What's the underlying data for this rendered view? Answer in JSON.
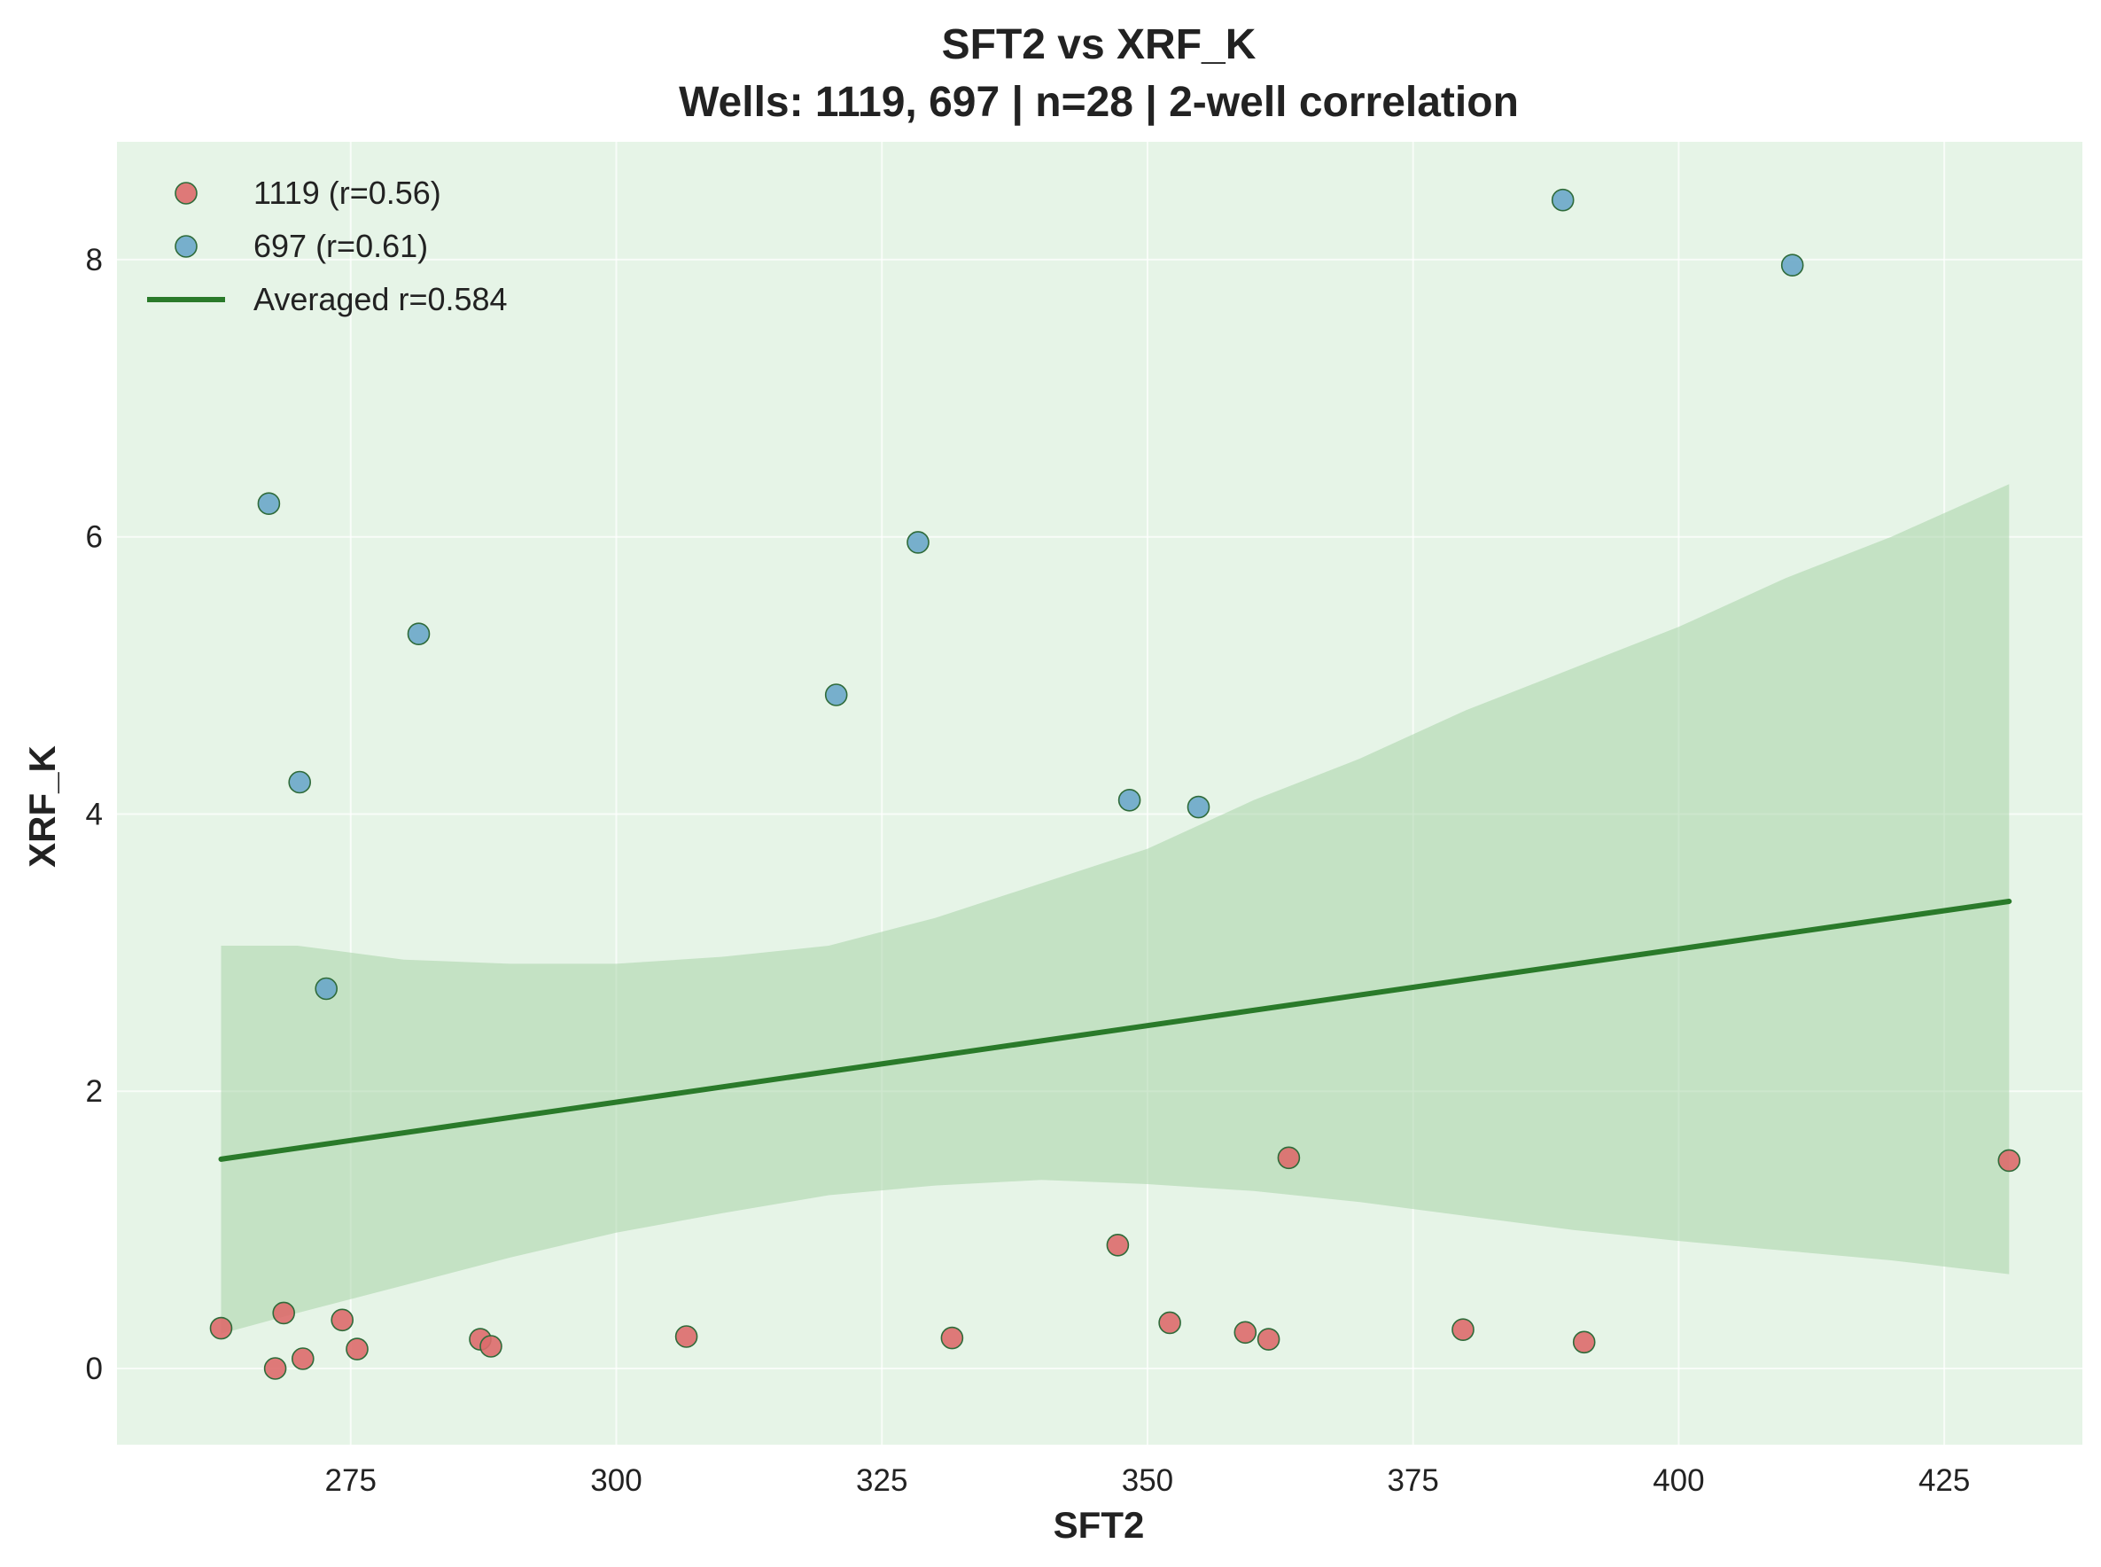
{
  "chart_data": {
    "type": "scatter",
    "title": "SFT2 vs XRF_K",
    "subtitle": "Wells: 1119, 697 | n=28 | 2-well correlation",
    "xlabel": "SFT2",
    "ylabel": "XRF_K",
    "xlim": [
      253,
      438
    ],
    "ylim": [
      -0.55,
      8.85
    ],
    "xticks": [
      275,
      300,
      325,
      350,
      375,
      400,
      425
    ],
    "yticks": [
      0,
      2,
      4,
      6,
      8
    ],
    "grid": true,
    "legend_position": "top-left",
    "background_color": "#e6f4e7",
    "series": [
      {
        "name": "1119 (r=0.56)",
        "color": "#dd6b6b",
        "points": [
          {
            "x": 262.8,
            "y": 0.29
          },
          {
            "x": 267.9,
            "y": 0.0
          },
          {
            "x": 268.7,
            "y": 0.4
          },
          {
            "x": 270.5,
            "y": 0.07
          },
          {
            "x": 274.2,
            "y": 0.35
          },
          {
            "x": 275.6,
            "y": 0.14
          },
          {
            "x": 287.2,
            "y": 0.21
          },
          {
            "x": 288.2,
            "y": 0.16
          },
          {
            "x": 306.6,
            "y": 0.23
          },
          {
            "x": 331.6,
            "y": 0.22
          },
          {
            "x": 347.2,
            "y": 0.89
          },
          {
            "x": 352.1,
            "y": 0.33
          },
          {
            "x": 359.2,
            "y": 0.26
          },
          {
            "x": 361.4,
            "y": 0.21
          },
          {
            "x": 363.3,
            "y": 1.52
          },
          {
            "x": 379.7,
            "y": 0.28
          },
          {
            "x": 391.1,
            "y": 0.19
          },
          {
            "x": 431.1,
            "y": 1.5
          }
        ]
      },
      {
        "name": "697 (r=0.61)",
        "color": "#6aa7c9",
        "points": [
          {
            "x": 267.3,
            "y": 6.24
          },
          {
            "x": 270.2,
            "y": 4.23
          },
          {
            "x": 272.7,
            "y": 2.74
          },
          {
            "x": 281.4,
            "y": 5.3
          },
          {
            "x": 320.7,
            "y": 4.86
          },
          {
            "x": 328.4,
            "y": 5.96
          },
          {
            "x": 348.3,
            "y": 4.1
          },
          {
            "x": 354.8,
            "y": 4.05
          },
          {
            "x": 389.1,
            "y": 8.43
          },
          {
            "x": 410.7,
            "y": 7.96
          }
        ]
      }
    ],
    "fit_line": {
      "name": "Averaged r=0.584",
      "color": "#2a7a2a",
      "x": [
        262.8,
        431.1
      ],
      "y": [
        1.51,
        3.37
      ]
    },
    "confidence_band": {
      "color": "#a8d3a8",
      "x": [
        262.8,
        270,
        280,
        290,
        300,
        310,
        320,
        330,
        340,
        350,
        360,
        370,
        380,
        390,
        400,
        410,
        420,
        431.1
      ],
      "upper": [
        3.05,
        3.05,
        2.95,
        2.92,
        2.92,
        2.97,
        3.05,
        3.25,
        3.5,
        3.75,
        4.1,
        4.4,
        4.75,
        5.05,
        5.35,
        5.7,
        6.0,
        6.38
      ],
      "lower": [
        0.25,
        0.4,
        0.6,
        0.8,
        0.98,
        1.12,
        1.25,
        1.32,
        1.36,
        1.33,
        1.28,
        1.2,
        1.1,
        1.0,
        0.92,
        0.85,
        0.78,
        0.68
      ]
    }
  }
}
